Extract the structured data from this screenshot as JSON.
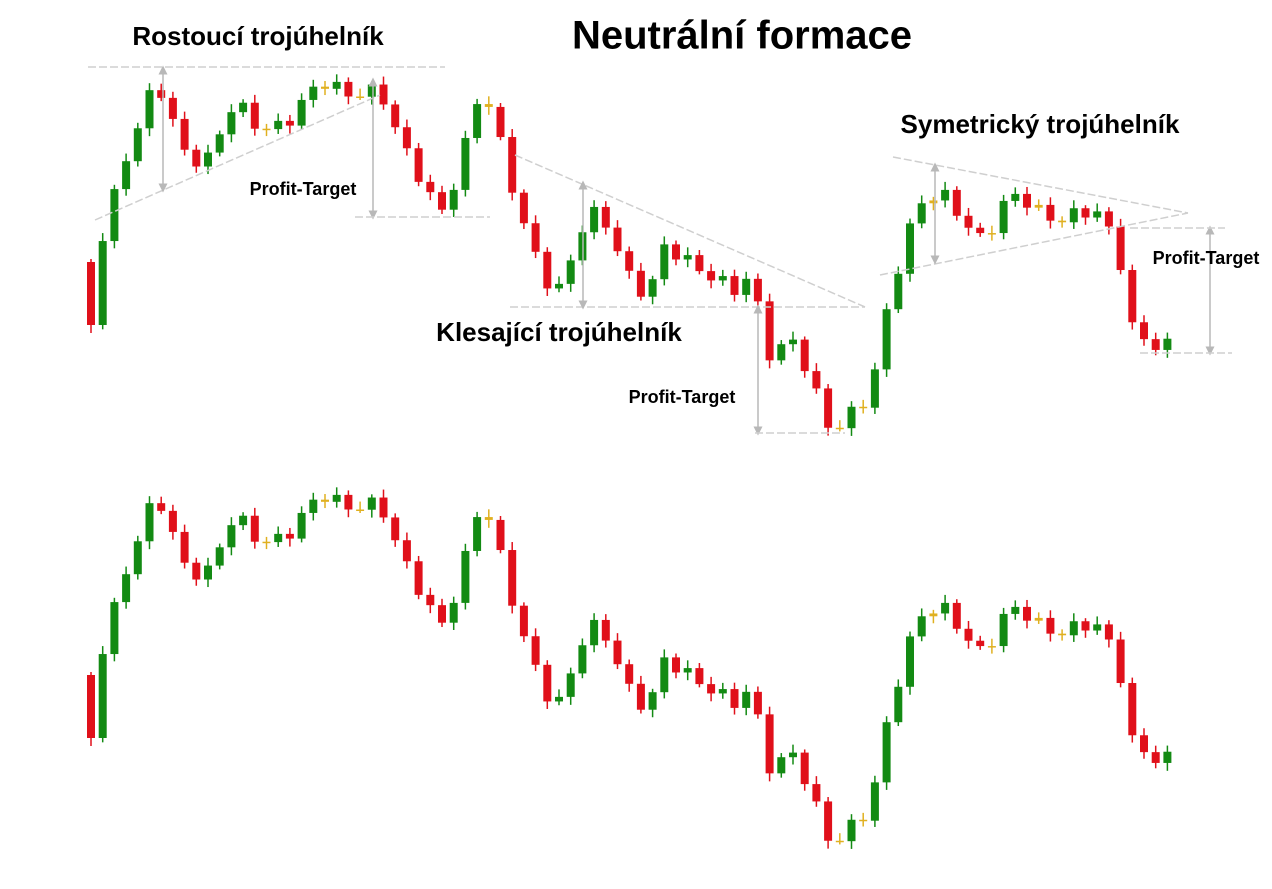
{
  "title": "Neutrální formace",
  "patterns": [
    {
      "label": "Rostoucí trojúhelník",
      "target": "Profit-Target"
    },
    {
      "label": "Klesající trojúhelník",
      "target": "Profit-Target"
    },
    {
      "label": "Symetrický trojúhelník",
      "target": "Profit-Target"
    }
  ]
}
